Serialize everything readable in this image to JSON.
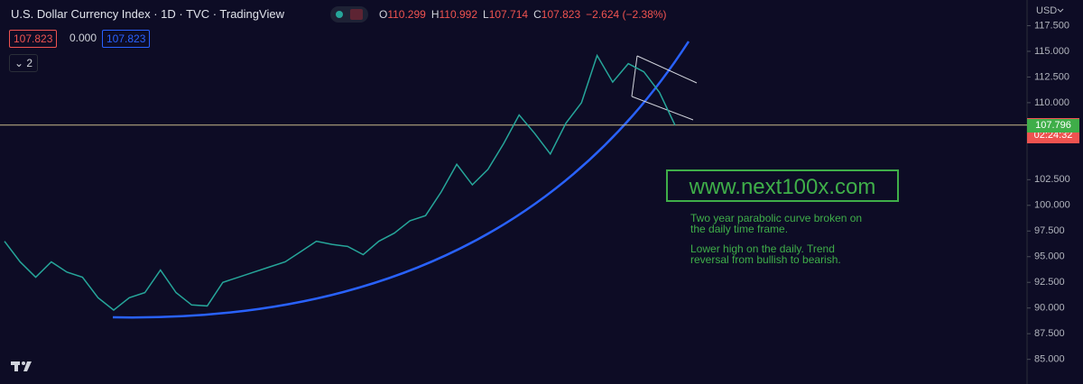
{
  "header": {
    "title": "U.S. Dollar Currency Index · 1D · TVC · TradingView",
    "ohlc": [
      {
        "label": "O",
        "value": "110.299"
      },
      {
        "label": "H",
        "value": "110.992"
      },
      {
        "label": "L",
        "value": "107.714"
      },
      {
        "label": "C",
        "value": "107.823"
      }
    ],
    "change": "−2.624 (−2.38%)",
    "inputs": [
      "107.823",
      "0.000",
      "107.823"
    ],
    "indicator_count": "2",
    "currency": "USD"
  },
  "annotations": {
    "watermark": "www.next100x.com",
    "notes": [
      "Two year parabolic curve broken on the daily time frame.",
      "Lower high on the daily. Trend reversal from bullish to bearish."
    ]
  },
  "chart_data": {
    "type": "line",
    "color": "#26a69a",
    "values": [
      96.5,
      94.5,
      93,
      94.5,
      93.5,
      93,
      91,
      89.8,
      91,
      91.5,
      93.7,
      91.5,
      90.3,
      90.2,
      92.5,
      93,
      93.5,
      94,
      94.5,
      95.5,
      96.5,
      96.2,
      96,
      95.2,
      96.5,
      97.3,
      98.5,
      99,
      101.3,
      104,
      102,
      103.5,
      106,
      108.8,
      107,
      105,
      108,
      110,
      114.6,
      112,
      113.8,
      113,
      111,
      107.8
    ],
    "ylim": [
      82.6,
      120
    ],
    "yticks": [
      {
        "value": 117.5,
        "label": "117.500"
      },
      {
        "value": 115,
        "label": "115.000"
      },
      {
        "value": 112.5,
        "label": "112.500"
      },
      {
        "value": 110,
        "label": "110.000"
      },
      {
        "value": 102.5,
        "label": "102.500"
      },
      {
        "value": 100,
        "label": "100.000"
      },
      {
        "value": 97.5,
        "label": "97.500"
      },
      {
        "value": 95,
        "label": "95.000"
      },
      {
        "value": 92.5,
        "label": "92.500"
      },
      {
        "value": 90,
        "label": "90.000"
      },
      {
        "value": 87.5,
        "label": "87.500"
      },
      {
        "value": 85,
        "label": "85.000"
      }
    ],
    "last_price": 107.823,
    "countdown": "02:24:32",
    "reference_price": 107.796
  }
}
